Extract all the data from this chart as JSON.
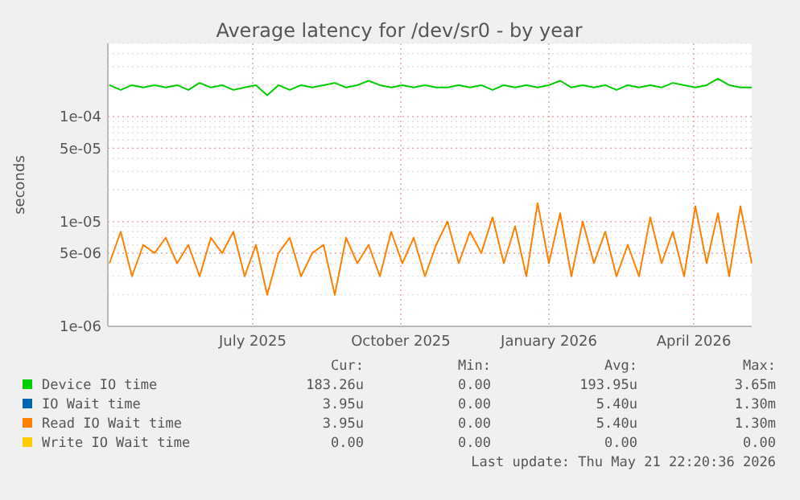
{
  "chart_data": {
    "type": "line",
    "title": "Average latency for /dev/sr0 - by year",
    "ylabel": "seconds",
    "x": [
      "2025-04-03",
      "2025-04-10",
      "2025-04-17",
      "2025-04-24",
      "2025-05-01",
      "2025-05-08",
      "2025-05-15",
      "2025-05-22",
      "2025-05-29",
      "2025-06-05",
      "2025-06-12",
      "2025-06-19",
      "2025-06-26",
      "2025-07-03",
      "2025-07-10",
      "2025-07-17",
      "2025-07-24",
      "2025-07-31",
      "2025-08-07",
      "2025-08-14",
      "2025-08-21",
      "2025-08-28",
      "2025-09-04",
      "2025-09-11",
      "2025-09-18",
      "2025-09-25",
      "2025-10-02",
      "2025-10-09",
      "2025-10-16",
      "2025-10-23",
      "2025-10-30",
      "2025-11-06",
      "2025-11-13",
      "2025-11-20",
      "2025-11-27",
      "2025-12-04",
      "2025-12-11",
      "2025-12-18",
      "2025-12-25",
      "2026-01-01",
      "2026-01-08",
      "2026-01-15",
      "2026-01-22",
      "2026-01-29",
      "2026-02-05",
      "2026-02-12",
      "2026-02-19",
      "2026-02-26",
      "2026-03-05",
      "2026-03-12",
      "2026-03-19",
      "2026-03-26",
      "2026-04-02",
      "2026-04-09",
      "2026-04-16",
      "2026-04-23",
      "2026-04-30",
      "2026-05-07"
    ],
    "series": [
      {
        "name": "Device IO time",
        "color": "#00cc00",
        "values": [
          0.0002,
          0.00018,
          0.0002,
          0.00019,
          0.0002,
          0.00019,
          0.0002,
          0.00018,
          0.00021,
          0.00019,
          0.0002,
          0.00018,
          0.00019,
          0.0002,
          0.00016,
          0.0002,
          0.00018,
          0.0002,
          0.00019,
          0.0002,
          0.00021,
          0.00019,
          0.0002,
          0.00022,
          0.0002,
          0.00019,
          0.0002,
          0.00019,
          0.0002,
          0.00019,
          0.00019,
          0.0002,
          0.00019,
          0.0002,
          0.00018,
          0.0002,
          0.00019,
          0.0002,
          0.00019,
          0.0002,
          0.00022,
          0.00019,
          0.0002,
          0.00019,
          0.0002,
          0.00018,
          0.0002,
          0.00019,
          0.0002,
          0.00019,
          0.00021,
          0.0002,
          0.00019,
          0.0002,
          0.00023,
          0.0002,
          0.00019,
          0.00019
        ]
      },
      {
        "name": "IO Wait time",
        "color": "#0066b3",
        "values": [
          null,
          null,
          null,
          null,
          null,
          null,
          null,
          null,
          null,
          null,
          null,
          null,
          null,
          null,
          null,
          null,
          null,
          null,
          null,
          null,
          null,
          null,
          null,
          null,
          null,
          null,
          null,
          null,
          null,
          null,
          null,
          null,
          null,
          null,
          null,
          null,
          null,
          null,
          null,
          null,
          null,
          null,
          null,
          null,
          null,
          null,
          null,
          null,
          null,
          null,
          null,
          null,
          null,
          null,
          null,
          null,
          null,
          null
        ]
      },
      {
        "name": "Read IO Wait time",
        "color": "#ff8000",
        "values": [
          4e-06,
          8e-06,
          3e-06,
          6e-06,
          5e-06,
          7e-06,
          4e-06,
          6e-06,
          3e-06,
          7e-06,
          5e-06,
          8e-06,
          3e-06,
          6e-06,
          2e-06,
          5e-06,
          7e-06,
          3e-06,
          5e-06,
          6e-06,
          2e-06,
          7e-06,
          4e-06,
          6e-06,
          3e-06,
          8e-06,
          4e-06,
          7e-06,
          3e-06,
          6e-06,
          1e-05,
          4e-06,
          8e-06,
          5e-06,
          1.1e-05,
          4e-06,
          9e-06,
          3e-06,
          1.5e-05,
          4e-06,
          1.2e-05,
          3e-06,
          1e-05,
          4e-06,
          8e-06,
          3e-06,
          6e-06,
          3e-06,
          1.1e-05,
          4e-06,
          8e-06,
          3e-06,
          1.4e-05,
          4e-06,
          1.2e-05,
          3e-06,
          1.4e-05,
          4e-06
        ]
      },
      {
        "name": "Write IO Wait time",
        "color": "#ffcc00",
        "values": [
          null,
          null,
          null,
          null,
          null,
          null,
          null,
          null,
          null,
          null,
          null,
          null,
          null,
          null,
          null,
          null,
          null,
          null,
          null,
          null,
          null,
          null,
          null,
          null,
          null,
          null,
          null,
          null,
          null,
          null,
          null,
          null,
          null,
          null,
          null,
          null,
          null,
          null,
          null,
          null,
          null,
          null,
          null,
          null,
          null,
          null,
          null,
          null,
          null,
          null,
          null,
          null,
          null,
          null,
          null,
          null,
          null,
          null
        ]
      }
    ],
    "log": true,
    "xlim": [
      "2025-04-02",
      "2026-05-07"
    ],
    "xticks": [
      {
        "value": "2025-07-01",
        "label": "July 2025"
      },
      {
        "value": "2025-10-01",
        "label": "October 2025"
      },
      {
        "value": "2026-01-01",
        "label": "January 2026"
      },
      {
        "value": "2026-04-01",
        "label": "April 2026"
      }
    ],
    "ylim": [
      1e-06,
      0.0005
    ],
    "yticks": [
      {
        "value": 1e-06,
        "label": "1e-06"
      },
      {
        "value": 5e-06,
        "label": "5e-06"
      },
      {
        "value": 1e-05,
        "label": "1e-05"
      },
      {
        "value": 5e-05,
        "label": "5e-05"
      },
      {
        "value": 0.0001,
        "label": "1e-04"
      }
    ],
    "grid": true,
    "legend": "bottom",
    "annotations": [
      "Cur:",
      "Min:",
      "Avg:",
      "Max:",
      "183.26u",
      "0.00",
      "193.95u",
      "3.65m",
      "3.95u",
      "0.00",
      "5.40u",
      "1.30m",
      "3.95u",
      "0.00",
      "5.40u",
      "1.30m",
      "0.00",
      "0.00",
      "0.00",
      "0.00",
      "Last update: Thu May 21 22:20:36 2026"
    ]
  }
}
